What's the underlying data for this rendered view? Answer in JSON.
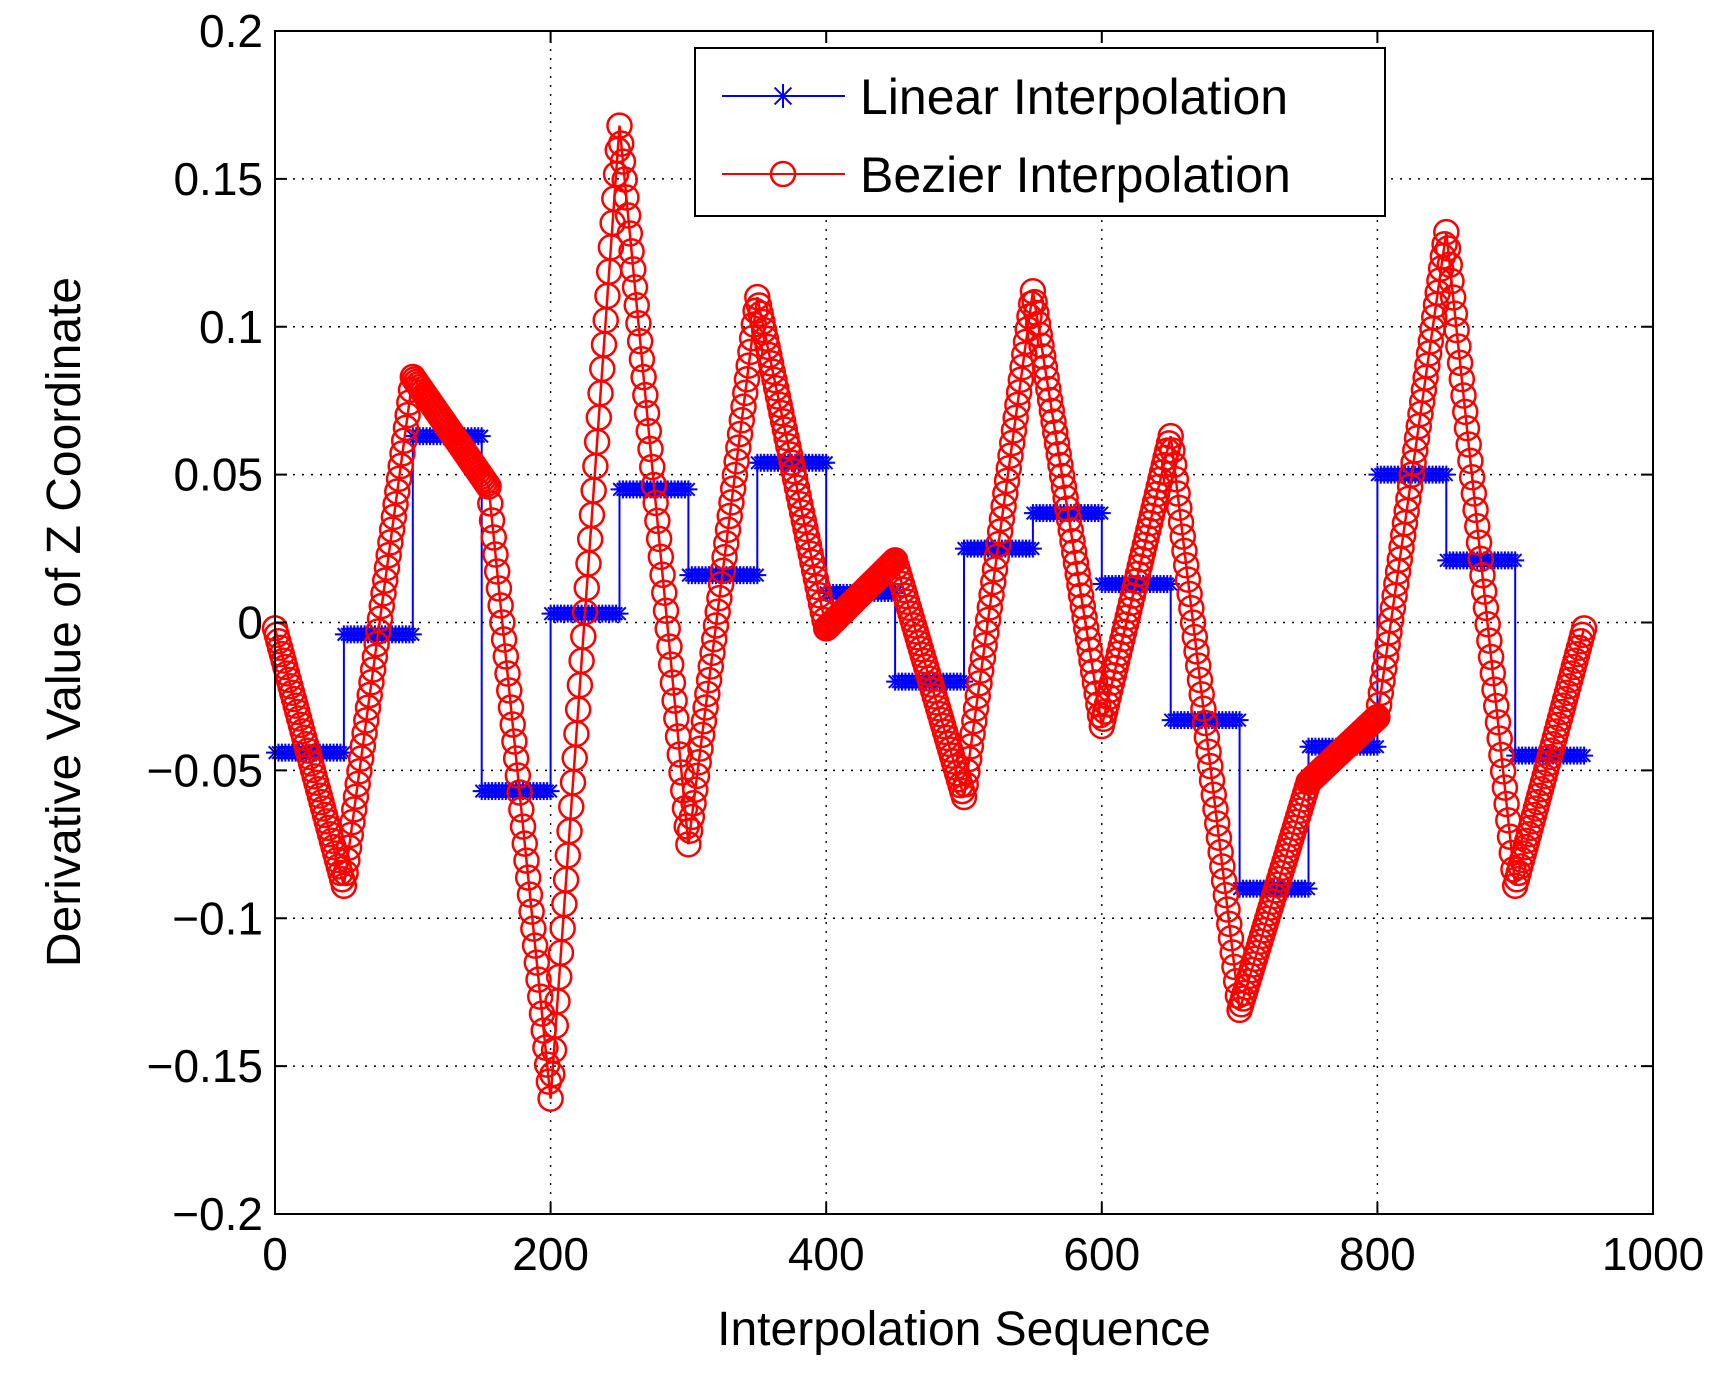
{
  "chart_data": {
    "type": "line",
    "title": "",
    "xlabel": "Interpolation Sequence",
    "ylabel": "Derivative Value of Z Coordinate",
    "xlim": [
      0,
      1000
    ],
    "ylim": [
      -0.2,
      0.2
    ],
    "xticks": [
      0,
      200,
      400,
      600,
      800,
      1000
    ],
    "xtick_labels": [
      "0",
      "200",
      "400",
      "600",
      "800",
      "1000"
    ],
    "yticks": [
      -0.2,
      -0.15,
      -0.1,
      -0.05,
      0,
      0.05,
      0.1,
      0.15,
      0.2
    ],
    "ytick_labels": [
      "−0.2",
      "−0.15",
      "−0.1",
      "−0.05",
      "0",
      "0.05",
      "0.1",
      "0.15",
      "0.2"
    ],
    "grid": true,
    "legend_position": "top-center",
    "series": [
      {
        "name": "Linear Interpolation",
        "color": "#0000ff",
        "marker": "asterisk",
        "style": "step",
        "segments": [
          {
            "x_start": 0,
            "x_end": 50,
            "y": -0.044
          },
          {
            "x_start": 50,
            "x_end": 100,
            "y": -0.004
          },
          {
            "x_start": 100,
            "x_end": 150,
            "y": 0.063
          },
          {
            "x_start": 150,
            "x_end": 200,
            "y": -0.057
          },
          {
            "x_start": 200,
            "x_end": 250,
            "y": 0.003
          },
          {
            "x_start": 250,
            "x_end": 300,
            "y": 0.045
          },
          {
            "x_start": 300,
            "x_end": 350,
            "y": 0.016
          },
          {
            "x_start": 350,
            "x_end": 400,
            "y": 0.054
          },
          {
            "x_start": 400,
            "x_end": 450,
            "y": 0.01
          },
          {
            "x_start": 450,
            "x_end": 500,
            "y": -0.02
          },
          {
            "x_start": 500,
            "x_end": 550,
            "y": 0.025
          },
          {
            "x_start": 550,
            "x_end": 600,
            "y": 0.037
          },
          {
            "x_start": 600,
            "x_end": 650,
            "y": 0.013
          },
          {
            "x_start": 650,
            "x_end": 700,
            "y": -0.033
          },
          {
            "x_start": 700,
            "x_end": 750,
            "y": -0.09
          },
          {
            "x_start": 750,
            "x_end": 800,
            "y": -0.042
          },
          {
            "x_start": 800,
            "x_end": 850,
            "y": 0.05
          },
          {
            "x_start": 850,
            "x_end": 900,
            "y": 0.021
          },
          {
            "x_start": 900,
            "x_end": 950,
            "y": -0.045
          }
        ]
      },
      {
        "name": "Bezier Interpolation",
        "color": "#ff0000",
        "marker": "circle",
        "style": "line",
        "x": [
          0,
          50,
          100,
          155,
          200,
          250,
          300,
          350,
          400,
          450,
          500,
          550,
          600,
          650,
          700,
          750,
          800,
          850,
          900,
          950
        ],
        "y": [
          -0.002,
          -0.089,
          0.083,
          0.046,
          -0.161,
          0.168,
          -0.075,
          0.11,
          -0.002,
          0.021,
          -0.059,
          0.112,
          -0.035,
          0.063,
          -0.131,
          -0.054,
          -0.032,
          0.132,
          -0.089,
          -0.002
        ]
      }
    ]
  }
}
